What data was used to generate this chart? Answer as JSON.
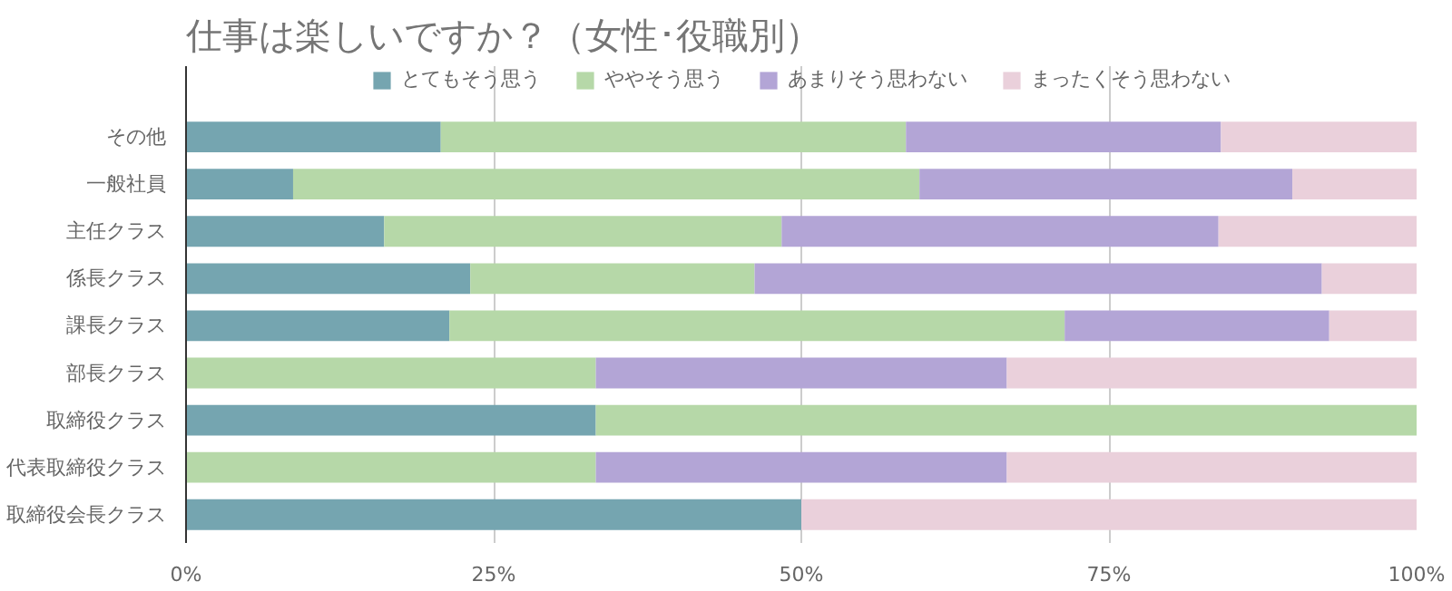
{
  "chart_data": {
    "type": "bar",
    "orientation": "horizontal",
    "stacked": true,
    "title": "仕事は楽しいですか？（女性･役職別）",
    "categories": [
      "その他",
      "一般社員",
      "主任クラス",
      "係長クラス",
      "課長クラス",
      "部長クラス",
      "取締役クラス",
      "代表取締役クラス",
      "取締役会長クラス"
    ],
    "series": [
      {
        "name": "とてもそう思う",
        "color": "#75a5b0",
        "values": [
          20.7,
          8.7,
          16.1,
          23.1,
          21.4,
          0,
          33.3,
          0,
          50
        ]
      },
      {
        "name": "ややそう思う",
        "color": "#b6d8a8",
        "values": [
          37.8,
          50.9,
          32.3,
          23.1,
          50,
          33.3,
          66.7,
          33.3,
          0
        ]
      },
      {
        "name": "あまりそう思わない",
        "color": "#b3a5d6",
        "values": [
          25.6,
          30.3,
          35.5,
          46.1,
          21.5,
          33.4,
          0,
          33.4,
          0
        ]
      },
      {
        "name": "まったくそう思わない",
        "color": "#ead0db",
        "values": [
          15.9,
          10.1,
          16.1,
          7.7,
          7.1,
          33.3,
          0,
          33.3,
          50
        ]
      }
    ],
    "xlim": [
      0,
      100
    ],
    "xticks": [
      {
        "value": 0,
        "label": "0%"
      },
      {
        "value": 25,
        "label": "25%"
      },
      {
        "value": 50,
        "label": "50%"
      },
      {
        "value": 75,
        "label": "75%"
      },
      {
        "value": 100,
        "label": "100%"
      }
    ],
    "grid": "x",
    "legend": "top"
  }
}
